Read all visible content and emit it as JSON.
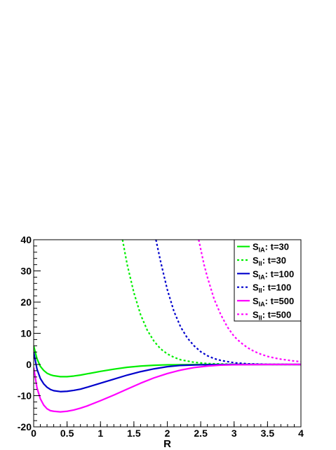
{
  "chart_data": {
    "type": "line",
    "xlabel": "R",
    "ylabel": "",
    "xlim": [
      0,
      4
    ],
    "ylim": [
      -20,
      40
    ],
    "xticks": [
      "0",
      "0.5",
      "1",
      "1.5",
      "2",
      "2.5",
      "3",
      "3.5",
      "4"
    ],
    "yticks": [
      "-20",
      "-10",
      "0",
      "10",
      "20",
      "30",
      "40"
    ],
    "legend_placement": "top-right",
    "grid": false,
    "series": [
      {
        "name_main": "S",
        "name_sub": "IA",
        "name_tail": ": t=30",
        "color": "#00ee00",
        "dash": "solid",
        "x": [
          0.0,
          0.05,
          0.1,
          0.15,
          0.2,
          0.25,
          0.3,
          0.4,
          0.5,
          0.6,
          0.7,
          0.8,
          1.0,
          1.2,
          1.4,
          1.6,
          1.8,
          2.0,
          2.5,
          3.0,
          3.5,
          4.0
        ],
        "y": [
          6.0,
          1.8,
          -0.6,
          -1.9,
          -2.8,
          -3.3,
          -3.6,
          -3.9,
          -3.9,
          -3.7,
          -3.4,
          -3.0,
          -2.2,
          -1.5,
          -0.9,
          -0.5,
          -0.25,
          -0.1,
          0.0,
          0.0,
          0.0,
          0.0
        ]
      },
      {
        "name_main": "S",
        "name_sub": "II",
        "name_tail": ": t=30",
        "color": "#00ee00",
        "dash": "dotted",
        "x": [
          1.33,
          1.4,
          1.5,
          1.6,
          1.7,
          1.8,
          1.9,
          2.0,
          2.1,
          2.2,
          2.4,
          2.6,
          2.8,
          3.0,
          3.5,
          4.0
        ],
        "y": [
          40.0,
          32.0,
          23.0,
          16.0,
          11.0,
          7.5,
          5.0,
          3.4,
          2.3,
          1.5,
          0.7,
          0.3,
          0.15,
          0.07,
          0.01,
          0.0
        ]
      },
      {
        "name_main": "S",
        "name_sub": "IA",
        "name_tail": ": t=100",
        "color": "#0000cc",
        "dash": "solid",
        "x": [
          0.0,
          0.05,
          0.1,
          0.15,
          0.2,
          0.25,
          0.3,
          0.4,
          0.5,
          0.6,
          0.7,
          0.8,
          1.0,
          1.2,
          1.4,
          1.6,
          1.8,
          2.0,
          2.2,
          2.5,
          3.0,
          3.5,
          4.0
        ],
        "y": [
          4.0,
          -1.5,
          -4.5,
          -6.2,
          -7.3,
          -8.0,
          -8.4,
          -8.7,
          -8.6,
          -8.3,
          -7.9,
          -7.3,
          -6.0,
          -4.7,
          -3.4,
          -2.3,
          -1.4,
          -0.7,
          -0.3,
          -0.1,
          0.0,
          0.0,
          0.0
        ]
      },
      {
        "name_main": "S",
        "name_sub": "II",
        "name_tail": ": t=100",
        "color": "#0000cc",
        "dash": "dotted",
        "x": [
          1.83,
          1.9,
          2.0,
          2.1,
          2.2,
          2.3,
          2.4,
          2.5,
          2.6,
          2.7,
          2.8,
          3.0,
          3.2,
          3.5,
          4.0
        ],
        "y": [
          40.0,
          33.0,
          24.0,
          17.0,
          12.0,
          8.5,
          6.0,
          4.1,
          2.8,
          1.9,
          1.3,
          0.55,
          0.22,
          0.05,
          0.0
        ]
      },
      {
        "name_main": "S",
        "name_sub": "IA",
        "name_tail": ": t=500",
        "color": "#ff00ff",
        "dash": "solid",
        "x": [
          0.0,
          0.05,
          0.1,
          0.15,
          0.2,
          0.25,
          0.3,
          0.4,
          0.5,
          0.6,
          0.7,
          0.8,
          1.0,
          1.2,
          1.4,
          1.6,
          1.8,
          2.0,
          2.2,
          2.4,
          2.6,
          2.8,
          3.0,
          3.5,
          4.0
        ],
        "y": [
          -1.0,
          -7.5,
          -11.0,
          -13.0,
          -14.2,
          -14.8,
          -15.0,
          -15.2,
          -15.0,
          -14.6,
          -14.0,
          -13.3,
          -11.6,
          -9.8,
          -7.9,
          -6.0,
          -4.3,
          -2.9,
          -1.8,
          -1.0,
          -0.5,
          -0.2,
          -0.1,
          0.0,
          0.0
        ]
      },
      {
        "name_main": "S",
        "name_sub": "II",
        "name_tail": ": t=500",
        "color": "#ff00ff",
        "dash": "dotted",
        "x": [
          2.47,
          2.55,
          2.6,
          2.7,
          2.8,
          2.9,
          3.0,
          3.1,
          3.2,
          3.3,
          3.4,
          3.5,
          3.6,
          3.7,
          3.8,
          3.9,
          4.0
        ],
        "y": [
          40.0,
          32.0,
          28.0,
          21.0,
          16.0,
          12.0,
          9.0,
          7.0,
          5.4,
          4.2,
          3.3,
          2.6,
          2.1,
          1.7,
          1.4,
          1.1,
          0.9
        ]
      }
    ]
  }
}
